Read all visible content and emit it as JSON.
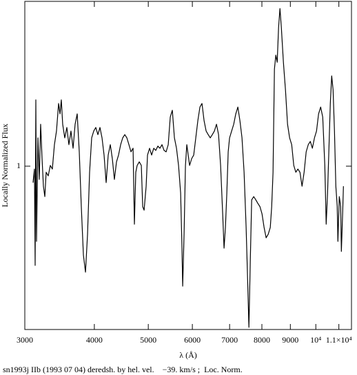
{
  "chart_data": {
    "type": "line",
    "title": "sn1993j IIb (1993 07 04) deredsh. by hel. vel.    −39. km/s ;  Loc. Norm.",
    "x_label": "λ (Å)",
    "y_label": "Locally Normalized Flux",
    "xscale": "log",
    "color": "#000000",
    "xlim": [
      3000,
      11590
    ],
    "ylim": [
      0.544,
      1.46
    ],
    "xticks": [
      3000,
      4000,
      5000,
      6000,
      7000,
      8000,
      9000,
      {
        "value": 10000,
        "label": "10⁴"
      },
      {
        "value": 11000,
        "label": "1.1×10⁴"
      }
    ],
    "yticks": [
      1
    ],
    "x": [
      3104,
      3122,
      3131,
      3140,
      3149,
      3167,
      3185,
      3203,
      3222,
      3240,
      3259,
      3277,
      3305,
      3334,
      3362,
      3391,
      3420,
      3450,
      3470,
      3489,
      3509,
      3539,
      3570,
      3600,
      3631,
      3663,
      3694,
      3726,
      3758,
      3790,
      3823,
      3856,
      3889,
      3922,
      3956,
      3990,
      4024,
      4059,
      4094,
      4129,
      4164,
      4200,
      4236,
      4273,
      4309,
      4346,
      4384,
      4421,
      4460,
      4498,
      4537,
      4576,
      4615,
      4655,
      4695,
      4721,
      4748,
      4775,
      4817,
      4858,
      4886,
      4914,
      4956,
      4984,
      5027,
      5070,
      5114,
      5158,
      5202,
      5247,
      5292,
      5337,
      5383,
      5430,
      5476,
      5523,
      5571,
      5619,
      5667,
      5716,
      5748,
      5765,
      5798,
      5831,
      5864,
      5898,
      5932,
      5983,
      6034,
      6086,
      6138,
      6191,
      6244,
      6298,
      6352,
      6407,
      6462,
      6517,
      6573,
      6630,
      6687,
      6744,
      6802,
      6841,
      6880,
      6920,
      6959,
      6999,
      7059,
      7120,
      7181,
      7243,
      7305,
      7368,
      7432,
      7495,
      7538,
      7582,
      7625,
      7669,
      7735,
      7801,
      7868,
      7936,
      8004,
      8073,
      8142,
      8212,
      8283,
      8331,
      8378,
      8426,
      8475,
      8523,
      8572,
      8621,
      8671,
      8745,
      8820,
      8896,
      8973,
      9050,
      9128,
      9206,
      9285,
      9365,
      9446,
      9527,
      9609,
      9692,
      9775,
      9859,
      9944,
      10029,
      10115,
      10202,
      10290,
      10379,
      10438,
      10498,
      10558,
      10618,
      10679,
      10740,
      10802,
      10864,
      10926,
      10957,
      11020,
      11083,
      11115,
      11178,
      11210
    ],
    "values": [
      0.954,
      0.992,
      0.723,
      1.185,
      0.79,
      1.079,
      0.963,
      1.117,
      1.021,
      0.944,
      0.915,
      0.983,
      0.973,
      1.002,
      0.992,
      1.06,
      1.098,
      1.175,
      1.146,
      1.185,
      1.117,
      1.079,
      1.108,
      1.06,
      1.098,
      1.05,
      1.117,
      1.146,
      1.04,
      0.887,
      0.752,
      0.704,
      0.81,
      0.983,
      1.079,
      1.098,
      1.108,
      1.088,
      1.108,
      1.079,
      1.031,
      0.954,
      1.031,
      1.06,
      1.021,
      0.963,
      1.012,
      1.031,
      1.06,
      1.079,
      1.088,
      1.079,
      1.06,
      1.04,
      1.05,
      0.838,
      0.983,
      1.002,
      1.012,
      1.002,
      0.887,
      0.877,
      0.944,
      1.031,
      1.05,
      1.031,
      1.05,
      1.044,
      1.056,
      1.05,
      1.06,
      1.044,
      1.04,
      1.06,
      1.137,
      1.156,
      1.079,
      1.05,
      1.002,
      0.925,
      0.771,
      0.665,
      0.81,
      1.002,
      1.06,
      1.031,
      1.002,
      1.021,
      1.031,
      1.079,
      1.127,
      1.165,
      1.175,
      1.127,
      1.098,
      1.088,
      1.079,
      1.088,
      1.098,
      1.117,
      1.088,
      1.002,
      0.867,
      0.771,
      0.829,
      0.925,
      1.04,
      1.079,
      1.098,
      1.117,
      1.146,
      1.165,
      1.127,
      1.079,
      0.983,
      0.829,
      0.694,
      0.55,
      0.733,
      0.906,
      0.915,
      0.906,
      0.896,
      0.887,
      0.867,
      0.829,
      0.8,
      0.81,
      0.829,
      0.887,
      0.983,
      1.271,
      1.31,
      1.29,
      1.387,
      1.44,
      1.387,
      1.29,
      1.213,
      1.117,
      1.079,
      1.06,
      1.002,
      0.983,
      0.992,
      0.983,
      0.944,
      0.983,
      1.04,
      1.06,
      1.069,
      1.05,
      1.079,
      1.098,
      1.146,
      1.165,
      1.137,
      1.002,
      0.838,
      0.925,
      1.05,
      1.175,
      1.252,
      1.213,
      1.098,
      0.944,
      0.887,
      0.79,
      0.915,
      0.887,
      0.762,
      0.877,
      0.944
    ]
  }
}
